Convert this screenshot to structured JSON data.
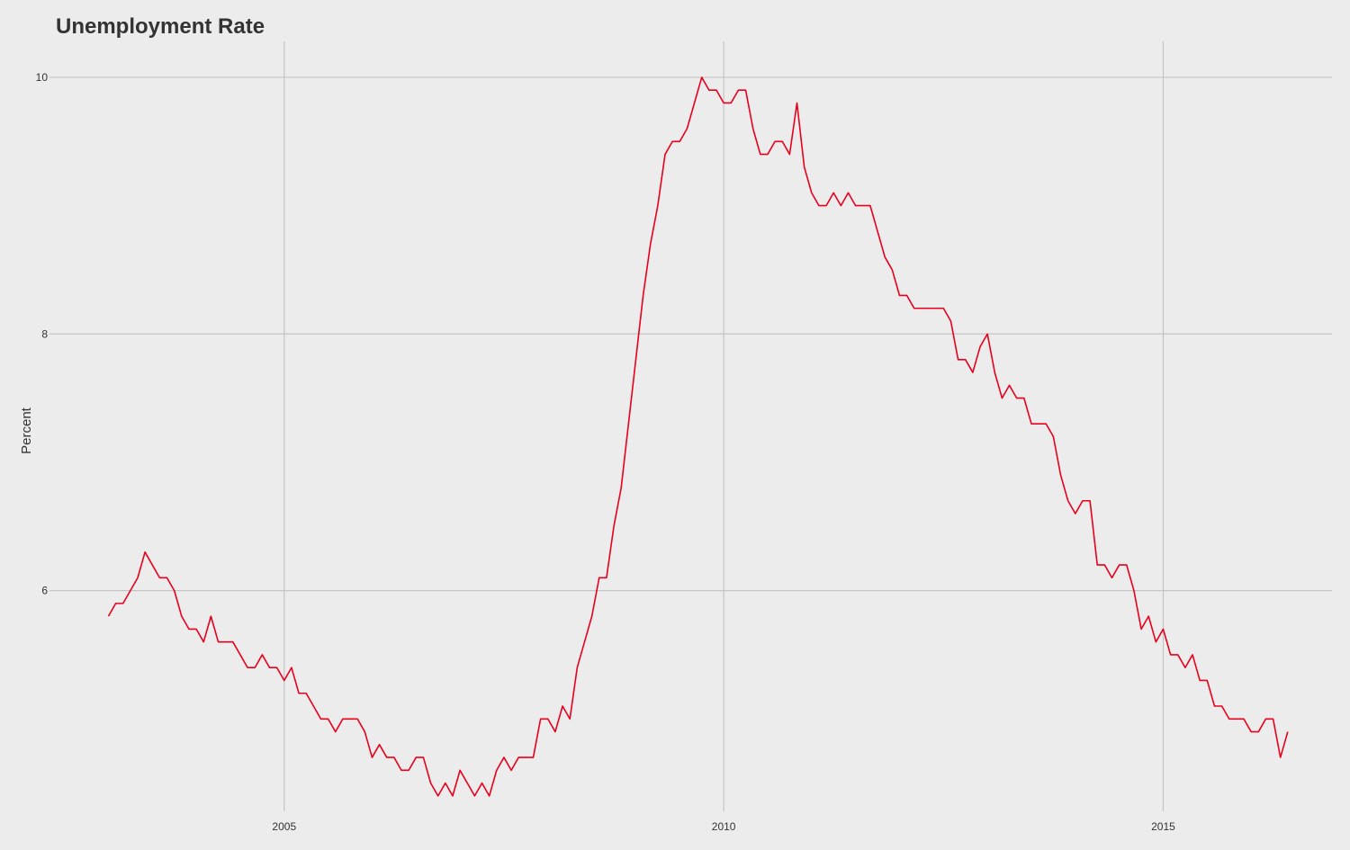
{
  "colors": {
    "background": "#ececec",
    "gridline": "#c4c4c4",
    "series": "#e8001c",
    "text": "#333333"
  },
  "chart_data": {
    "type": "line",
    "title": "Unemployment Rate",
    "xlabel": "",
    "ylabel": "Percent",
    "grid": true,
    "legend": "none",
    "xlim": [
      2002.33,
      2016.92
    ],
    "ylim": [
      4.28,
      10.28
    ],
    "x_ticks": [
      2005,
      2010,
      2015
    ],
    "x_tick_labels": [
      "2005",
      "2010",
      "2015"
    ],
    "y_ticks": [
      6,
      8,
      10
    ],
    "y_tick_labels": [
      "6",
      "8",
      "10"
    ],
    "series": [
      {
        "name": "Unemployment Rate",
        "start": 2003.0,
        "step_months": 1,
        "values": [
          5.8,
          5.9,
          5.9,
          6.0,
          6.1,
          6.3,
          6.2,
          6.1,
          6.1,
          6.0,
          5.8,
          5.7,
          5.7,
          5.6,
          5.8,
          5.6,
          5.6,
          5.6,
          5.5,
          5.4,
          5.4,
          5.5,
          5.4,
          5.4,
          5.3,
          5.4,
          5.2,
          5.2,
          5.1,
          5.0,
          5.0,
          4.9,
          5.0,
          5.0,
          5.0,
          4.9,
          4.7,
          4.8,
          4.7,
          4.7,
          4.6,
          4.6,
          4.7,
          4.7,
          4.5,
          4.4,
          4.5,
          4.4,
          4.6,
          4.5,
          4.4,
          4.5,
          4.4,
          4.6,
          4.7,
          4.6,
          4.7,
          4.7,
          4.7,
          5.0,
          5.0,
          4.9,
          5.1,
          5.0,
          5.4,
          5.6,
          5.8,
          6.1,
          6.1,
          6.5,
          6.8,
          7.3,
          7.8,
          8.3,
          8.7,
          9.0,
          9.4,
          9.5,
          9.5,
          9.6,
          9.8,
          10.0,
          9.9,
          9.9,
          9.8,
          9.8,
          9.9,
          9.9,
          9.6,
          9.4,
          9.4,
          9.5,
          9.5,
          9.4,
          9.8,
          9.3,
          9.1,
          9.0,
          9.0,
          9.1,
          9.0,
          9.1,
          9.0,
          9.0,
          9.0,
          8.8,
          8.6,
          8.5,
          8.3,
          8.3,
          8.2,
          8.2,
          8.2,
          8.2,
          8.2,
          8.1,
          7.8,
          7.8,
          7.7,
          7.9,
          8.0,
          7.7,
          7.5,
          7.6,
          7.5,
          7.5,
          7.3,
          7.3,
          7.3,
          7.2,
          6.9,
          6.7,
          6.6,
          6.7,
          6.7,
          6.2,
          6.2,
          6.1,
          6.2,
          6.2,
          6.0,
          5.7,
          5.8,
          5.6,
          5.7,
          5.5,
          5.5,
          5.4,
          5.5,
          5.3,
          5.3,
          5.1,
          5.1,
          5.0,
          5.0,
          5.0,
          4.9,
          4.9,
          5.0,
          5.0,
          4.7,
          4.9
        ],
        "color": "#e8001c"
      }
    ]
  }
}
